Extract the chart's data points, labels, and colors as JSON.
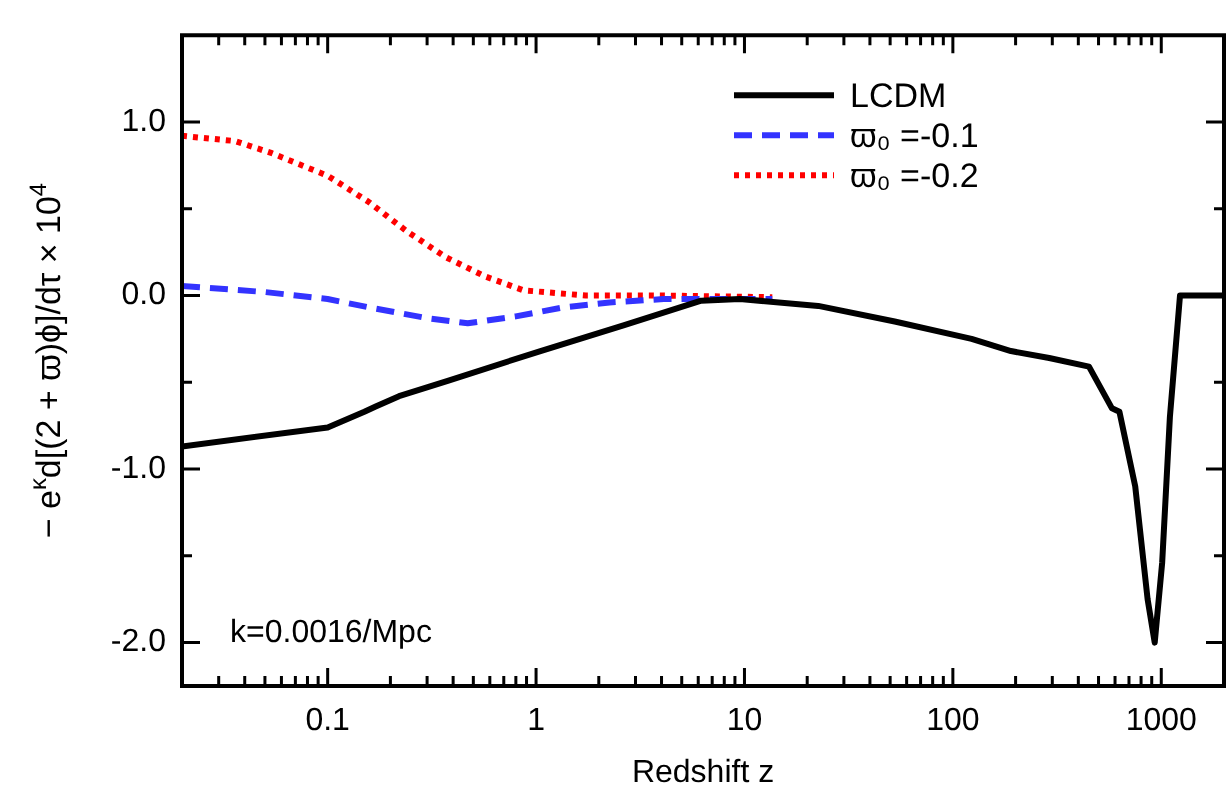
{
  "chart_data": {
    "type": "line",
    "xlabel": "Redshift z",
    "ylabel": "− e$^{κ}$d[(2 + ϖ)ϕ]/dτ × 10$^{4}$",
    "log": "x",
    "legend": "top right",
    "marker": "none",
    "xlim": [
      0.02,
      2000
    ],
    "ylim": [
      -2.25,
      1.5
    ],
    "xticks": [
      {
        "value": 0.03,
        "label": null
      },
      {
        "value": 0.04,
        "label": null
      },
      {
        "value": 0.05,
        "label": null
      },
      {
        "value": 0.06,
        "label": null
      },
      {
        "value": 0.07,
        "label": null
      },
      {
        "value": 0.08,
        "label": null
      },
      {
        "value": 0.09,
        "label": null
      },
      0.1,
      {
        "value": 0.2,
        "label": null
      },
      {
        "value": 0.3,
        "label": null
      },
      {
        "value": 0.4,
        "label": null
      },
      {
        "value": 0.5,
        "label": null
      },
      {
        "value": 0.6,
        "label": null
      },
      {
        "value": 0.7,
        "label": null
      },
      {
        "value": 0.8,
        "label": null
      },
      {
        "value": 0.9,
        "label": null
      },
      1,
      {
        "value": 2,
        "label": null
      },
      {
        "value": 3,
        "label": null
      },
      {
        "value": 4,
        "label": null
      },
      {
        "value": 5,
        "label": null
      },
      {
        "value": 6,
        "label": null
      },
      {
        "value": 7,
        "label": null
      },
      {
        "value": 8,
        "label": null
      },
      {
        "value": 9,
        "label": null
      },
      10,
      {
        "value": 20,
        "label": null
      },
      {
        "value": 30,
        "label": null
      },
      {
        "value": 40,
        "label": null
      },
      {
        "value": 50,
        "label": null
      },
      {
        "value": 60,
        "label": null
      },
      {
        "value": 70,
        "label": null
      },
      {
        "value": 80,
        "label": null
      },
      {
        "value": 90,
        "label": null
      },
      100,
      {
        "value": 200,
        "label": null
      },
      {
        "value": 300,
        "label": null
      },
      {
        "value": 400,
        "label": null
      },
      {
        "value": 500,
        "label": null
      },
      {
        "value": 600,
        "label": null
      },
      {
        "value": 700,
        "label": null
      },
      {
        "value": 800,
        "label": null
      },
      {
        "value": 900,
        "label": null
      },
      1000
    ],
    "yticks": [
      {
        "value": -2,
        "label": "-2.0"
      },
      {
        "value": -1.5,
        "label": null
      },
      {
        "value": -1,
        "label": "-1.0"
      },
      {
        "value": -0.5,
        "label": null
      },
      {
        "value": 0,
        "label": "0.0"
      },
      {
        "value": 0.5,
        "label": null
      },
      {
        "value": 1,
        "label": "1.0"
      }
    ],
    "annotations": [
      "k=0.0016/Mpc"
    ],
    "series": [
      {
        "name": "LCDM",
        "color": "#000000",
        "line_style": "solid",
        "x": [
          0.02,
          0.1,
          0.15,
          0.17,
          0.22,
          0.38,
          1.05,
          2.65,
          6.2,
          9.5,
          22.6,
          52.6,
          123,
          190,
          290,
          450,
          580,
          630,
          750,
          860,
          930,
          1010,
          1100,
          1230,
          2000
        ],
        "values": [
          -0.87,
          -0.76,
          -0.67,
          -0.64,
          -0.58,
          -0.49,
          -0.32,
          -0.17,
          -0.03,
          -0.02,
          -0.06,
          -0.15,
          -0.25,
          -0.32,
          -0.36,
          -0.41,
          -0.65,
          -0.67,
          -1.1,
          -1.75,
          -2.0,
          -1.54,
          -0.7,
          0.0,
          0.0
        ]
      },
      {
        "name": "ϖ₀ =-0.1",
        "color": "#3333ff",
        "line_style": "dashed",
        "x": [
          0.02,
          0.05,
          0.1,
          0.16,
          0.3,
          0.47,
          0.8,
          1.33,
          2.25,
          4.1,
          13.6
        ],
        "values": [
          0.055,
          0.02,
          -0.02,
          -0.07,
          -0.13,
          -0.16,
          -0.12,
          -0.07,
          -0.04,
          -0.02,
          -0.02
        ]
      },
      {
        "name": "ϖ₀ =-0.2",
        "color": "#ff0000",
        "line_style": "dotted",
        "x": [
          0.02,
          0.036,
          0.054,
          0.1,
          0.157,
          0.24,
          0.37,
          0.57,
          0.87,
          1.73,
          4.1,
          13.6
        ],
        "values": [
          0.92,
          0.89,
          0.82,
          0.69,
          0.54,
          0.37,
          0.22,
          0.11,
          0.03,
          0.0,
          0.0,
          -0.01
        ]
      }
    ]
  }
}
